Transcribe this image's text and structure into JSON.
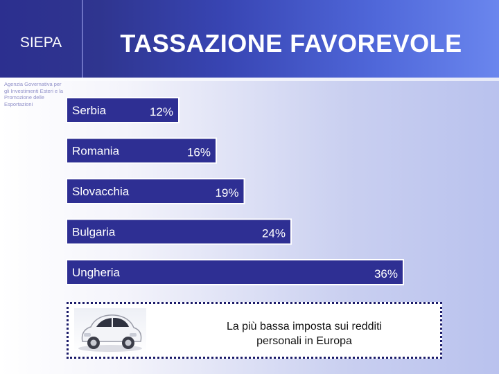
{
  "header": {
    "logo": "SIEPA",
    "title": "TASSAZIONE FAVOREVOLE",
    "agency_description": "Agenzia Governativa per gli Investimenti Esteri e la Promozione delle Esportazioni"
  },
  "chart_data": {
    "type": "bar",
    "orientation": "horizontal",
    "categories": [
      "Serbia",
      "Romania",
      "Slovacchia",
      "Bulgaria",
      "Ungheria"
    ],
    "values": [
      12,
      16,
      19,
      24,
      36
    ],
    "value_labels": [
      "12%",
      "16%",
      "19%",
      "24%",
      "36%"
    ],
    "title": "",
    "xlabel": "",
    "ylabel": "",
    "grid": false,
    "colors": {
      "bar_fill": "#2e2f93",
      "bar_border": "#ffffff"
    }
  },
  "footer_box": {
    "caption_line1": "La più bassa imposta sui redditi",
    "caption_line2": "personali in Europa",
    "image": "fiat-500-car"
  }
}
